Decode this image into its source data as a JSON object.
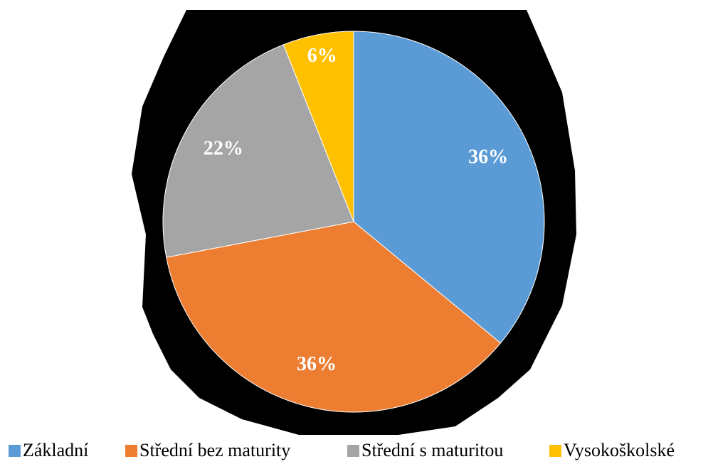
{
  "chart_data": {
    "type": "pie",
    "categories": [
      "Základní",
      "Střední bez maturity",
      "Střední s maturitou",
      "Vysokoškolské"
    ],
    "values": [
      36,
      36,
      22,
      6
    ],
    "value_labels": [
      "36%",
      "36%",
      "22%",
      "6%"
    ],
    "colors": [
      "#5b9bd5",
      "#ed7d31",
      "#a5a5a5",
      "#ffc000"
    ],
    "legend": "bottom"
  }
}
